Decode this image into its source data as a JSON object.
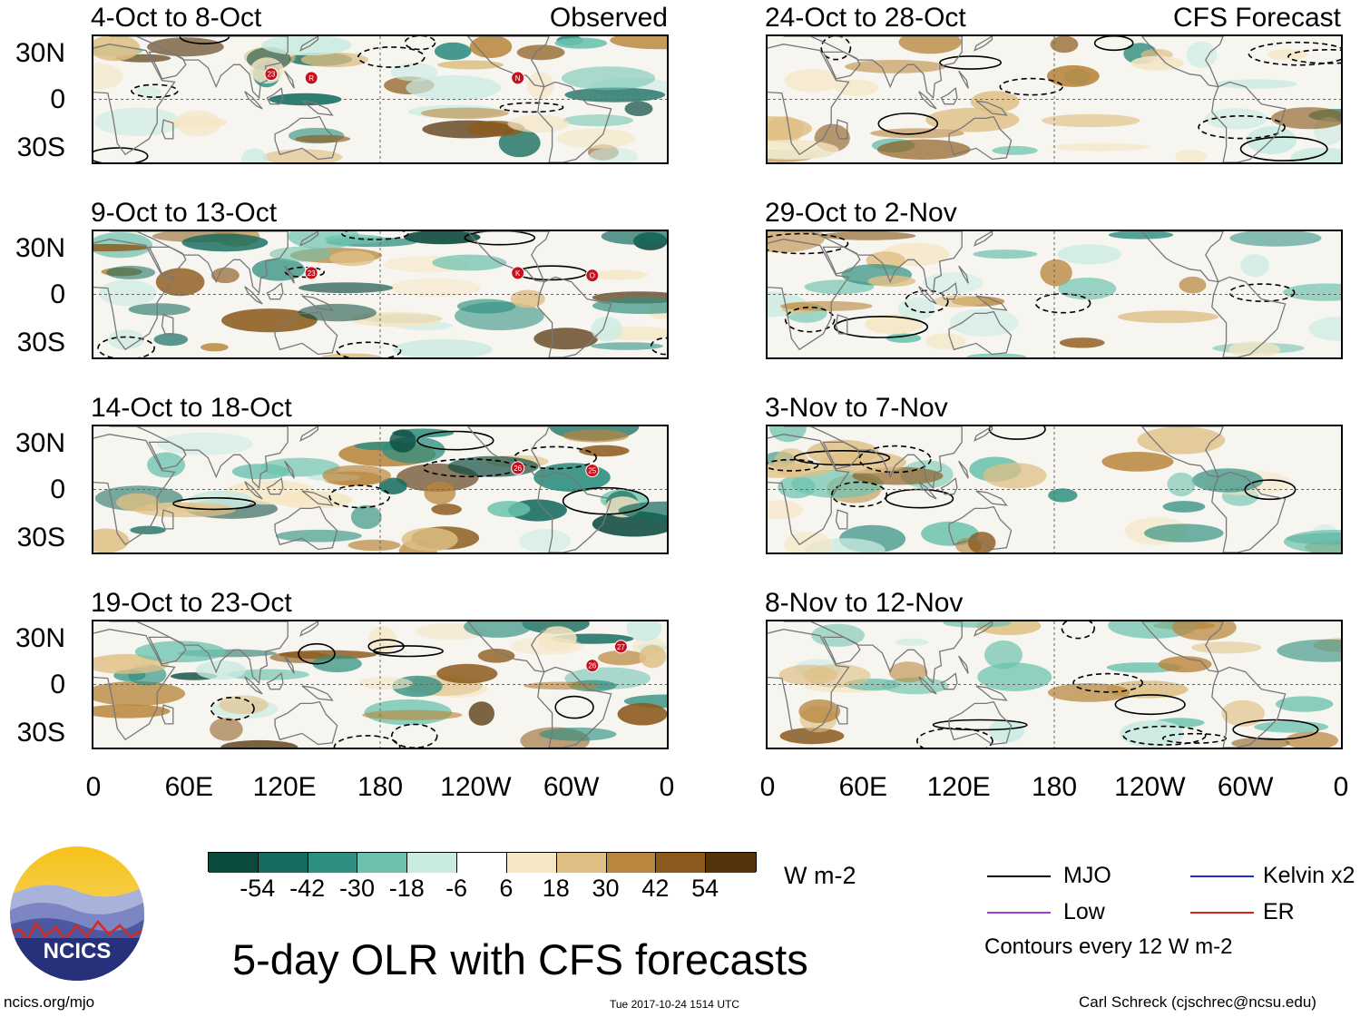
{
  "chart_data": {
    "type": "heatmap",
    "title": "5-day OLR with CFS forecasts",
    "units": "W m-2",
    "column_tags": [
      "Observed",
      "CFS Forecast"
    ],
    "y_tick_labels": [
      "30N",
      "0",
      "30S"
    ],
    "x_tick_labels": [
      "0",
      "60E",
      "120E",
      "180",
      "120W",
      "60W",
      "0"
    ],
    "x_range_deg_east": [
      0,
      360
    ],
    "y_range_deg": [
      -40,
      40
    ],
    "panels": [
      {
        "id": "p1",
        "title": "4-Oct to 8-Oct",
        "type": "observed",
        "storms": [
          "23",
          "R",
          "N"
        ]
      },
      {
        "id": "p2",
        "title": "9-Oct to 13-Oct",
        "type": "observed",
        "storms": [
          "23",
          "K",
          "O"
        ]
      },
      {
        "id": "p3",
        "title": "14-Oct to 18-Oct",
        "type": "observed",
        "storms": [
          "26",
          "25"
        ]
      },
      {
        "id": "p4",
        "title": "19-Oct to 23-Oct",
        "type": "observed",
        "storms": [
          "26",
          "27"
        ]
      },
      {
        "id": "p5",
        "title": "24-Oct to 28-Oct",
        "type": "forecast",
        "storms": []
      },
      {
        "id": "p6",
        "title": "29-Oct to 2-Nov",
        "type": "forecast",
        "storms": []
      },
      {
        "id": "p7",
        "title": "3-Nov to 7-Nov",
        "type": "forecast",
        "storms": []
      },
      {
        "id": "p8",
        "title": "8-Nov to 12-Nov",
        "type": "forecast",
        "storms": []
      }
    ],
    "colorbar": {
      "ticks": [
        "-54",
        "-42",
        "-30",
        "-18",
        "-6",
        "6",
        "18",
        "30",
        "42",
        "54"
      ],
      "colors": [
        "#0b4a3e",
        "#156b5e",
        "#2f8f80",
        "#6cc2ae",
        "#c9ebe2",
        "#ffffff",
        "#f5e6c4",
        "#dfbf84",
        "#b9863d",
        "#8c5a1c",
        "#55340c"
      ]
    },
    "legend": [
      {
        "label": "MJO",
        "color": "#000000"
      },
      {
        "label": "Kelvin x2",
        "color": "#1a2be0"
      },
      {
        "label": "Low",
        "color": "#9a40e0"
      },
      {
        "label": "ER",
        "color": "#e0201a"
      }
    ],
    "contour_note": "Contours every 12 W m-2"
  },
  "footer": {
    "logo_text": "NCICS",
    "left": "ncics.org/mjo",
    "center": "Tue 2017-10-24 1514 UTC",
    "right": "Carl Schreck (cjschrec@ncsu.edu)"
  }
}
